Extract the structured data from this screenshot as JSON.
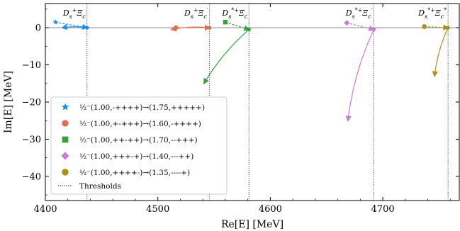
{
  "chart_data": {
    "type": "scatter",
    "xlabel": "Re[E] [MeV]",
    "ylabel": "Im[E] [MeV]",
    "xlim": [
      4400,
      4768
    ],
    "ylim": [
      -46.5,
      6.5
    ],
    "xticks": [
      4400,
      4500,
      4600,
      4700
    ],
    "yticks": [
      0,
      -10,
      -20,
      -30,
      -40
    ],
    "grid": false,
    "zero_line": true,
    "legend_position": "lower-left",
    "thresholds": [
      {
        "label": "D_s⁺Ξ_c",
        "x": 4437
      },
      {
        "label": "D_s⁺Ξ_c′",
        "x": 4546
      },
      {
        "label": "D_s*⁺Ξ_c",
        "x": 4581
      },
      {
        "label": "D_s*⁺Ξ_c′",
        "x": 4692
      },
      {
        "label": "D_s*⁺Ξ_c*",
        "x": 4758
      }
    ],
    "threshold_legend_label": "Thresholds",
    "series": [
      {
        "name": "½⁻(1.00,-++++)→(1.75,+++++)",
        "color": "#1f8fe6",
        "marker": "star",
        "start": [
          4409,
          1.5
        ],
        "branch": [
          4437,
          0
        ],
        "end": [
          4415,
          0
        ]
      },
      {
        "name": "½⁻(1.00,+-+++)→(1.60,-++++)",
        "color": "#e07050",
        "marker": "circle",
        "start": [
          4516,
          0
        ],
        "branch": [
          4546,
          0
        ],
        "end": [
          4512,
          -0.5
        ]
      },
      {
        "name": "½⁻(1.00,++-++)→(1.70,--+++)",
        "color": "#3aa03a",
        "marker": "square",
        "start": [
          4560,
          1.5
        ],
        "branch": [
          4581,
          -0.5
        ],
        "end": [
          4541,
          -15
        ]
      },
      {
        "name": "½⁻(1.00,+++-+)→(1.40,---++)",
        "color": "#c77ad6",
        "marker": "diamond",
        "start": [
          4668,
          1.3
        ],
        "branch": [
          4692,
          -0.5
        ],
        "end": [
          4669,
          -25
        ]
      },
      {
        "name": "½⁻(1.00,++++-)→(1.35,----+)",
        "color": "#a8901a",
        "marker": "octagon",
        "start": [
          4737,
          0.3
        ],
        "branch": [
          4758,
          0
        ],
        "end": [
          4746,
          -13
        ]
      }
    ]
  }
}
